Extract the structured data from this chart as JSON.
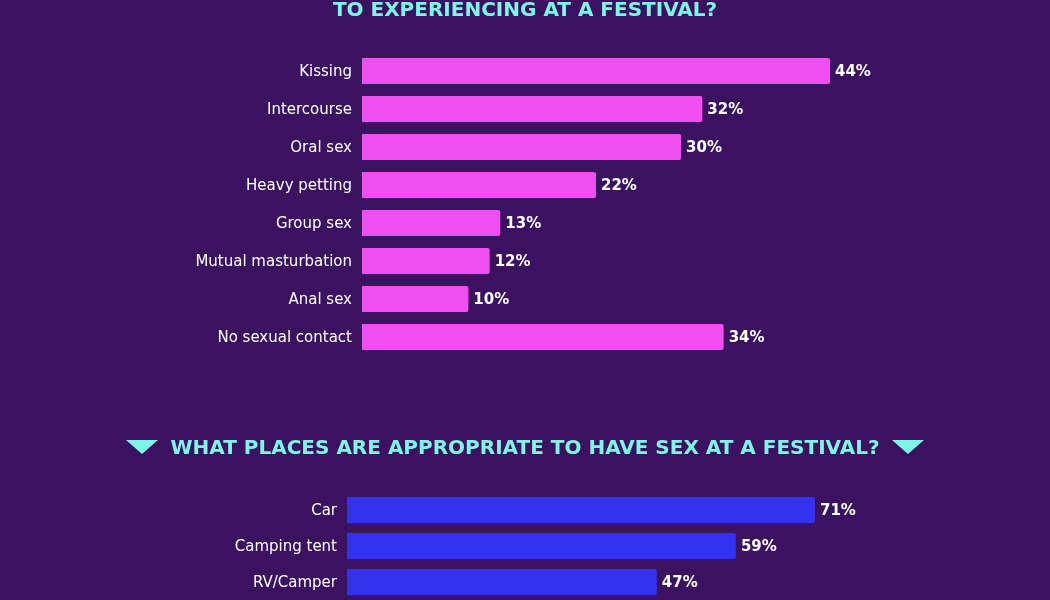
{
  "chart_data": [
    {
      "type": "bar",
      "orientation": "horizontal",
      "title": "TO EXPERIENCING AT A FESTIVAL?",
      "categories": [
        "Kissing",
        "Intercourse",
        "Oral sex",
        "Heavy petting",
        "Group sex",
        "Mutual masturbation",
        "Anal sex",
        "No sexual contact"
      ],
      "values": [
        44,
        32,
        30,
        22,
        13,
        12,
        10,
        34
      ],
      "value_labels": [
        "44%",
        "32%",
        "30%",
        "22%",
        "13%",
        "12%",
        "10%",
        "34%"
      ],
      "color": "#f04ef0"
    },
    {
      "type": "bar",
      "orientation": "horizontal",
      "title": "WHAT PLACES ARE APPROPRIATE TO HAVE SEX AT A FESTIVAL?",
      "categories": [
        "Car",
        "Camping tent",
        "RV/Camper"
      ],
      "values": [
        71,
        59,
        47
      ],
      "value_labels": [
        "71%",
        "59%",
        "47%"
      ],
      "color": "#3232f0"
    }
  ]
}
